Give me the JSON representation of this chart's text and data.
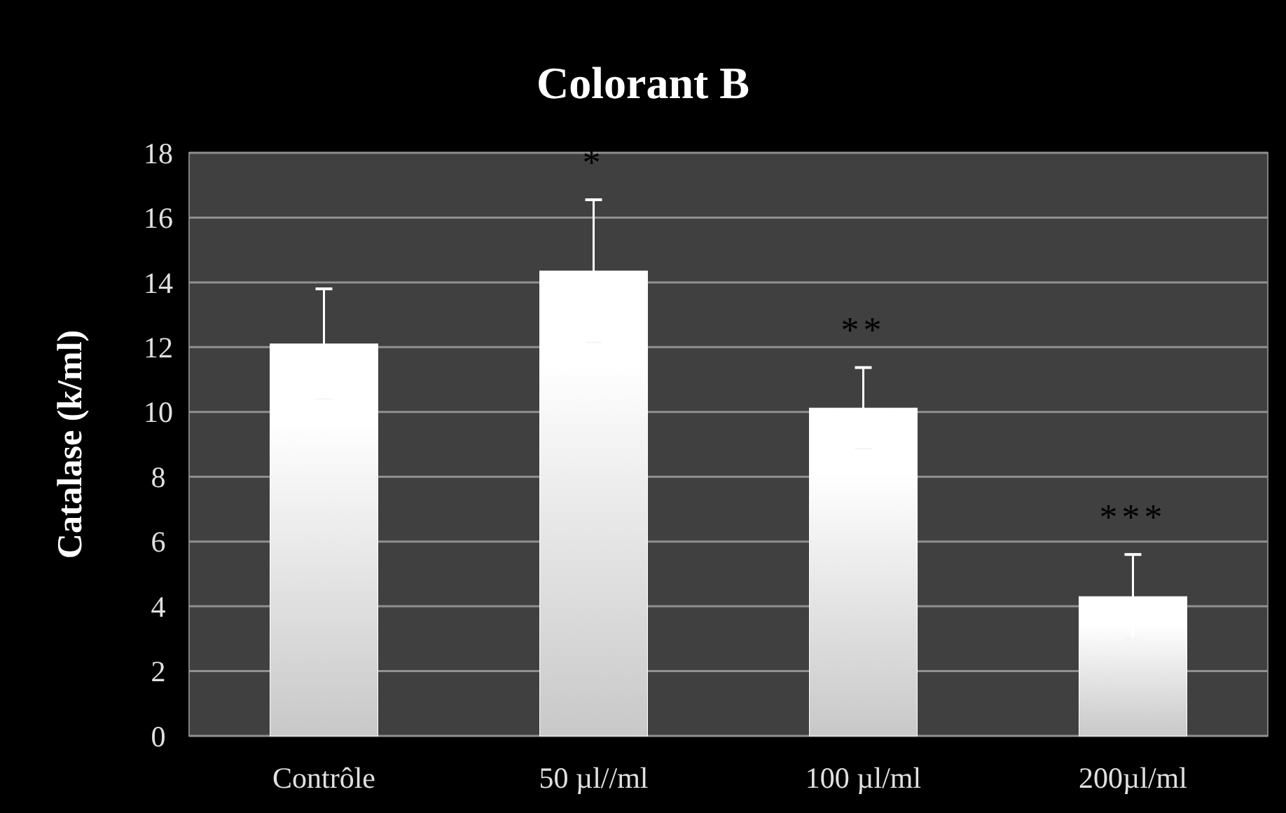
{
  "chart_data": {
    "type": "bar",
    "title": "Colorant B",
    "ylabel": "Catalase (k/ml)",
    "categories": [
      "Contrôle",
      "50 µl//ml",
      "100 µl/ml",
      "200µl/ml"
    ],
    "values": [
      12.1,
      14.35,
      10.12,
      4.3
    ],
    "errors": [
      1.7,
      2.2,
      1.25,
      1.3
    ],
    "color": "#ffffff",
    "ylim": [
      0,
      18
    ],
    "yticks": [
      0,
      2,
      4,
      6,
      8,
      10,
      12,
      14,
      16,
      18
    ],
    "grid": "y",
    "annotations": [
      "*",
      "**",
      "***"
    ]
  }
}
